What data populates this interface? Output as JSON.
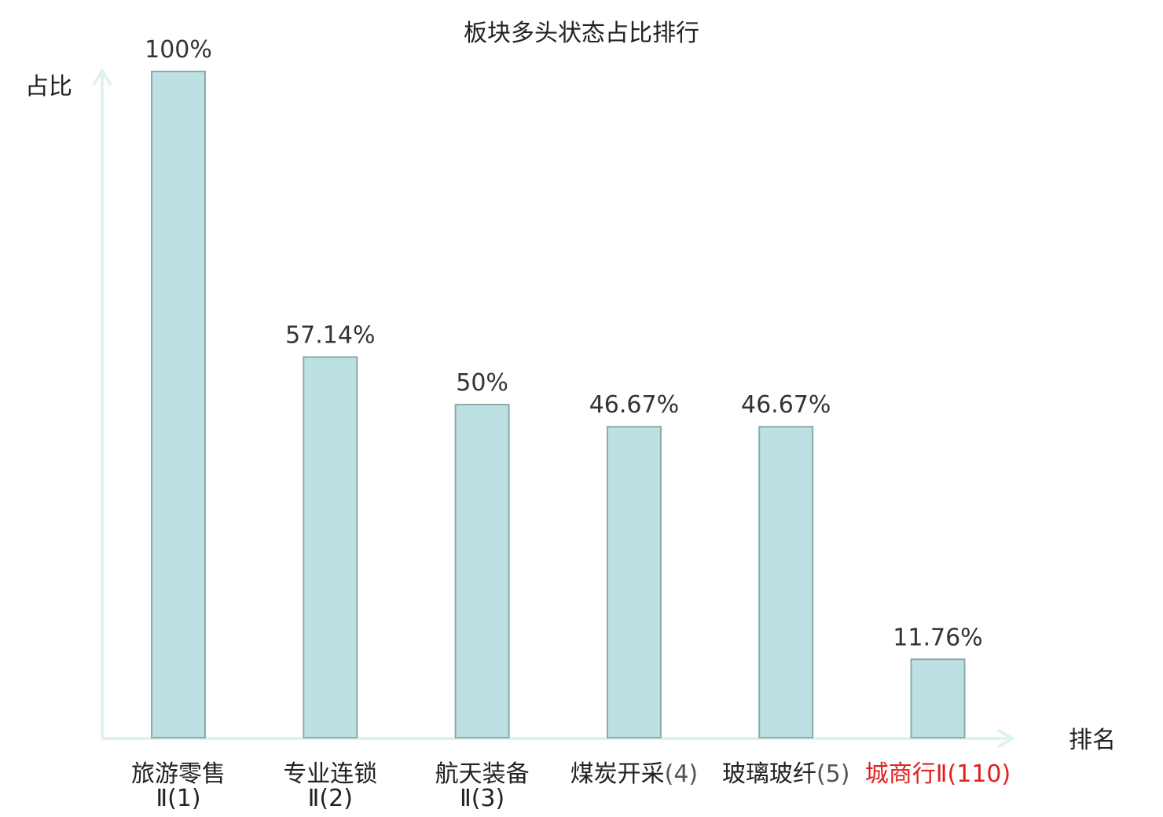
{
  "chart_data": {
    "type": "bar",
    "title": "板块多头状态占比排行",
    "ylabel": "占比",
    "xlabel": "排名",
    "ylim": [
      0,
      100
    ],
    "grid": false,
    "categories": [
      {
        "name": "旅游零售",
        "rank": "Ⅱ(1)",
        "highlight": false
      },
      {
        "name": "专业连锁",
        "rank": "Ⅱ(2)",
        "highlight": false
      },
      {
        "name": "航天装备",
        "rank": "Ⅱ(3)",
        "highlight": false
      },
      {
        "name": "煤炭开采",
        "rank": "(4)",
        "highlight": false
      },
      {
        "name": "玻璃玻纤",
        "rank": "(5)",
        "highlight": false
      },
      {
        "name": "城商行",
        "rank": "Ⅱ(110)",
        "highlight": true
      }
    ],
    "values": [
      100,
      57.14,
      50,
      46.67,
      46.67,
      11.76
    ],
    "value_labels": [
      "100%",
      "57.14%",
      "50%",
      "46.67%",
      "46.67%",
      "11.76%"
    ]
  },
  "colors": {
    "bar_fill": "#bde0e3",
    "bar_stroke": "#8aaaad",
    "axis": "#e0f2ef",
    "highlight": "#e02020"
  }
}
